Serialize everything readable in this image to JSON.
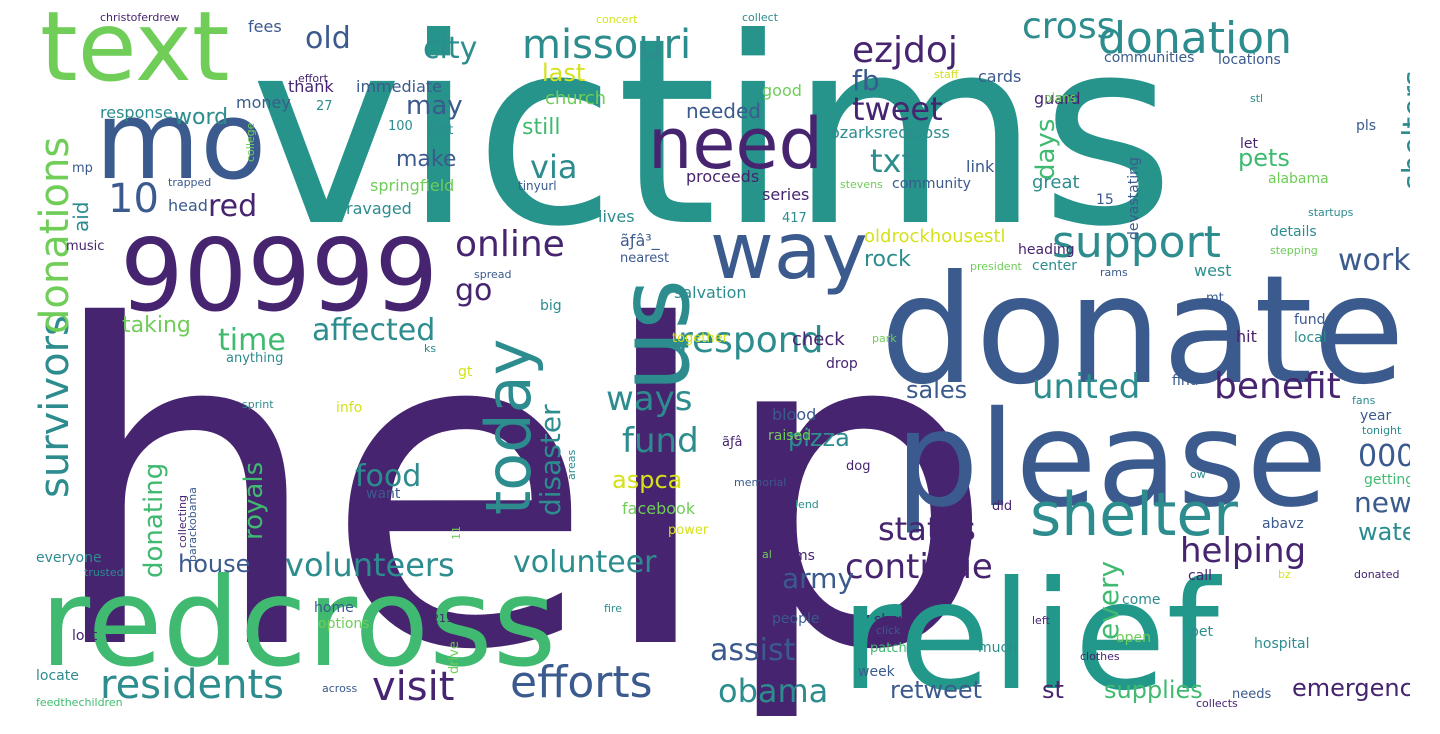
{
  "cloud": {
    "background": "#ffffff",
    "words": [
      {
        "text": "help",
        "color": "#46246f"
      },
      {
        "text": "victims",
        "color": "#26948b"
      },
      {
        "text": "donate",
        "color": "#3b5a8d"
      },
      {
        "text": "please",
        "color": "#3b5a8d"
      },
      {
        "text": "redcross",
        "color": "#3fba70"
      },
      {
        "text": "relief",
        "color": "#22988b"
      },
      {
        "text": "90999",
        "color": "#46246f"
      },
      {
        "text": "mo",
        "color": "#3b5a8d"
      },
      {
        "text": "text",
        "color": "#6fcd58"
      },
      {
        "text": "us",
        "color": "#2c8c8e"
      },
      {
        "text": "way",
        "color": "#3b5a8d"
      },
      {
        "text": "need",
        "color": "#46246f"
      },
      {
        "text": "today",
        "color": "#2c8c8e"
      },
      {
        "text": "shelter",
        "color": "#2c8c8e"
      },
      {
        "text": "donation",
        "color": "#2c8c8e"
      },
      {
        "text": "missouri",
        "color": "#2c8c8e"
      },
      {
        "text": "cross",
        "color": "#2c8c8e"
      },
      {
        "text": "ezjdoj",
        "color": "#46246f"
      },
      {
        "text": "support",
        "color": "#2c8c8e"
      },
      {
        "text": "efforts",
        "color": "#3b5a8d"
      },
      {
        "text": "residents",
        "color": "#2c8c8e"
      },
      {
        "text": "visit",
        "color": "#46246f"
      },
      {
        "text": "obama",
        "color": "#2c8c8e"
      },
      {
        "text": "survivors",
        "color": "#2c8c8e"
      },
      {
        "text": "donations",
        "color": "#6fcd58"
      },
      {
        "text": "online",
        "color": "#46246f"
      },
      {
        "text": "respond",
        "color": "#2c8c8e"
      },
      {
        "text": "benefit",
        "color": "#46246f"
      },
      {
        "text": "united",
        "color": "#2c8c8e"
      },
      {
        "text": "helping",
        "color": "#46246f"
      },
      {
        "text": "continue",
        "color": "#46246f"
      },
      {
        "text": "states",
        "color": "#46246f"
      },
      {
        "text": "volunteers",
        "color": "#2c8c8e"
      },
      {
        "text": "volunteer",
        "color": "#2c8c8e"
      },
      {
        "text": "fund",
        "color": "#2c8c8e"
      },
      {
        "text": "ways",
        "color": "#2c8c8e"
      },
      {
        "text": "affected",
        "color": "#2c8c8e"
      },
      {
        "text": "time",
        "color": "#3fba70"
      },
      {
        "text": "food",
        "color": "#2c8c8e"
      },
      {
        "text": "txt",
        "color": "#2c8c8e"
      },
      {
        "text": "tweet",
        "color": "#46246f"
      },
      {
        "text": "via",
        "color": "#2c8c8e"
      },
      {
        "text": "city",
        "color": "#2c8c8e"
      },
      {
        "text": "old",
        "color": "#3b5a8d"
      },
      {
        "text": "10",
        "color": "#3b5a8d"
      },
      {
        "text": "red",
        "color": "#46246f"
      },
      {
        "text": "fb",
        "color": "#3b5a8d"
      },
      {
        "text": "last",
        "color": "#d5e21a"
      },
      {
        "text": "shelters",
        "color": "#2c8c8e"
      },
      {
        "text": "days",
        "color": "#3fba70"
      },
      {
        "text": "pets",
        "color": "#3fba70"
      },
      {
        "text": "work",
        "color": "#3b5a8d"
      },
      {
        "text": "news",
        "color": "#3b5a8d"
      },
      {
        "text": "000",
        "color": "#3b5a8d"
      },
      {
        "text": "every",
        "color": "#3fba70"
      },
      {
        "text": "water",
        "color": "#2c8c8e"
      },
      {
        "text": "emergency",
        "color": "#46246f"
      },
      {
        "text": "supplies",
        "color": "#3fba70"
      },
      {
        "text": "st",
        "color": "#46246f"
      },
      {
        "text": "retweet",
        "color": "#3b5a8d"
      },
      {
        "text": "army",
        "color": "#3b5a8d"
      },
      {
        "text": "assist",
        "color": "#3b5a8d"
      },
      {
        "text": "disaster",
        "color": "#2c8c8e"
      },
      {
        "text": "aspca",
        "color": "#d5e21a"
      },
      {
        "text": "pizza",
        "color": "#2c8c8e"
      },
      {
        "text": "sales",
        "color": "#3b5a8d"
      },
      {
        "text": "royals",
        "color": "#3fba70"
      },
      {
        "text": "donating",
        "color": "#3fba70"
      },
      {
        "text": "house",
        "color": "#3b5a8d"
      },
      {
        "text": "aid",
        "color": "#2c8c8e"
      },
      {
        "text": "go",
        "color": "#46246f"
      },
      {
        "text": "make",
        "color": "#3b5a8d"
      },
      {
        "text": "may",
        "color": "#3b5a8d"
      },
      {
        "text": "still",
        "color": "#3fba70"
      },
      {
        "text": "needed",
        "color": "#3b5a8d"
      },
      {
        "text": "word",
        "color": "#2c8c8e"
      },
      {
        "text": "taking",
        "color": "#6fcd58"
      },
      {
        "text": "rock",
        "color": "#2c8c8e"
      },
      {
        "text": "oldrockhousestl",
        "color": "#d5e21a"
      },
      {
        "text": "church",
        "color": "#6fcd58"
      },
      {
        "text": "response",
        "color": "#2c8c8e"
      },
      {
        "text": "christoferdrew",
        "color": "#46246f"
      },
      {
        "text": "fees",
        "color": "#3b5a8d"
      },
      {
        "text": "concert",
        "color": "#d5e21a"
      },
      {
        "text": "collect",
        "color": "#2c8c8e"
      },
      {
        "text": "immediate",
        "color": "#3b5a8d"
      },
      {
        "text": "thank",
        "color": "#46246f"
      },
      {
        "text": "money",
        "color": "#3b5a8d"
      },
      {
        "text": "good",
        "color": "#6fcd58"
      },
      {
        "text": "staff",
        "color": "#d5e21a"
      },
      {
        "text": "cards",
        "color": "#3b5a8d"
      },
      {
        "text": "guard",
        "color": "#46246f"
      },
      {
        "text": "communities",
        "color": "#3b5a8d"
      },
      {
        "text": "locations",
        "color": "#3b5a8d"
      },
      {
        "text": "effort",
        "color": "#46246f"
      },
      {
        "text": "27",
        "color": "#2c8c8e"
      },
      {
        "text": "100",
        "color": "#2c8c8e"
      },
      {
        "text": "first",
        "color": "#2c8c8e"
      },
      {
        "text": "college",
        "color": "#6fcd58"
      },
      {
        "text": "mp",
        "color": "#3b5a8d"
      },
      {
        "text": "trapped",
        "color": "#3b5a8d"
      },
      {
        "text": "head",
        "color": "#3b5a8d"
      },
      {
        "text": "springfield",
        "color": "#6fcd58"
      },
      {
        "text": "tinyurl",
        "color": "#3b5a8d"
      },
      {
        "text": "ravaged",
        "color": "#2c8c8e"
      },
      {
        "text": "series",
        "color": "#46246f"
      },
      {
        "text": "proceeds",
        "color": "#46246f"
      },
      {
        "text": "lives",
        "color": "#2c8c8e"
      },
      {
        "text": "417",
        "color": "#2c8c8e"
      },
      {
        "text": "plans",
        "color": "#6fcd58"
      },
      {
        "text": "ozarksredcross",
        "color": "#2c8c8e"
      },
      {
        "text": "link",
        "color": "#3b5a8d"
      },
      {
        "text": "devastating",
        "color": "#3b5a8d"
      },
      {
        "text": "community",
        "color": "#3b5a8d"
      },
      {
        "text": "stevens",
        "color": "#6fcd58"
      },
      {
        "text": "great",
        "color": "#2c8c8e"
      },
      {
        "text": "15",
        "color": "#3b5a8d"
      },
      {
        "text": "let",
        "color": "#46246f"
      },
      {
        "text": "stl",
        "color": "#2c8c8e"
      },
      {
        "text": "pls",
        "color": "#3b5a8d"
      },
      {
        "text": "alabama",
        "color": "#6fcd58"
      },
      {
        "text": "startups",
        "color": "#2c8c8e"
      },
      {
        "text": "details",
        "color": "#2c8c8e"
      },
      {
        "text": "stepping",
        "color": "#6fcd58"
      },
      {
        "text": "heading",
        "color": "#46246f"
      },
      {
        "text": "president",
        "color": "#6fcd58"
      },
      {
        "text": "center",
        "color": "#2c8c8e"
      },
      {
        "text": "rams",
        "color": "#3b5a8d"
      },
      {
        "text": "west",
        "color": "#2c8c8e"
      },
      {
        "text": "ãƒâ³_",
        "color": "#3b5a8d"
      },
      {
        "text": "nearest",
        "color": "#3b5a8d"
      },
      {
        "text": "music",
        "color": "#46246f"
      },
      {
        "text": "spread",
        "color": "#3b5a8d"
      },
      {
        "text": "big",
        "color": "#2c8c8e"
      },
      {
        "text": "salvation",
        "color": "#2c8c8e"
      },
      {
        "text": "anything",
        "color": "#2c8c8e"
      },
      {
        "text": "ks",
        "color": "#2c8c8e"
      },
      {
        "text": "together",
        "color": "#d5e21a"
      },
      {
        "text": "check",
        "color": "#46246f"
      },
      {
        "text": "hit",
        "color": "#46246f"
      },
      {
        "text": "funds",
        "color": "#3b5a8d"
      },
      {
        "text": "local",
        "color": "#2c8c8e"
      },
      {
        "text": "mt",
        "color": "#3b5a8d"
      },
      {
        "text": "park",
        "color": "#6fcd58"
      },
      {
        "text": "gt",
        "color": "#d5e21a"
      },
      {
        "text": "drop",
        "color": "#46246f"
      },
      {
        "text": "find",
        "color": "#3b5a8d"
      },
      {
        "text": "fans",
        "color": "#2c8c8e"
      },
      {
        "text": "sprint",
        "color": "#2c8c8e"
      },
      {
        "text": "info",
        "color": "#d5e21a"
      },
      {
        "text": "blood",
        "color": "#3b5a8d"
      },
      {
        "text": "raised",
        "color": "#6fcd58"
      },
      {
        "text": "year",
        "color": "#3b5a8d"
      },
      {
        "text": "tonight",
        "color": "#2c8c8e"
      },
      {
        "text": "ãƒâ",
        "color": "#46246f"
      },
      {
        "text": "dog",
        "color": "#46246f"
      },
      {
        "text": "memorial",
        "color": "#3b5a8d"
      },
      {
        "text": "want",
        "color": "#3b5a8d"
      },
      {
        "text": "collecting",
        "color": "#46246f"
      },
      {
        "text": "barackobama",
        "color": "#3b5a8d"
      },
      {
        "text": "areas",
        "color": "#2c8c8e"
      },
      {
        "text": "facebook",
        "color": "#6fcd58"
      },
      {
        "text": "lend",
        "color": "#2c8c8e"
      },
      {
        "text": "getting",
        "color": "#3fba70"
      },
      {
        "text": "ow",
        "color": "#2c8c8e"
      },
      {
        "text": "dld",
        "color": "#46246f"
      },
      {
        "text": "11",
        "color": "#6fcd58"
      },
      {
        "text": "power",
        "color": "#d5e21a"
      },
      {
        "text": "abavz",
        "color": "#3b5a8d"
      },
      {
        "text": "everyone",
        "color": "#2c8c8e"
      },
      {
        "text": "trusted",
        "color": "#2c8c8e"
      },
      {
        "text": "items",
        "color": "#46246f"
      },
      {
        "text": "al",
        "color": "#6fcd58"
      },
      {
        "text": "call",
        "color": "#46246f"
      },
      {
        "text": "bz",
        "color": "#d5e21a"
      },
      {
        "text": "donated",
        "color": "#46246f"
      },
      {
        "text": "fire",
        "color": "#2c8c8e"
      },
      {
        "text": "home",
        "color": "#3b5a8d"
      },
      {
        "text": "options",
        "color": "#6fcd58"
      },
      {
        "text": "211",
        "color": "#46246f"
      },
      {
        "text": "drive",
        "color": "#6fcd58"
      },
      {
        "text": "people",
        "color": "#3b5a8d"
      },
      {
        "text": "show",
        "color": "#46246f"
      },
      {
        "text": "click",
        "color": "#3b5a8d"
      },
      {
        "text": "patch",
        "color": "#3fba70"
      },
      {
        "text": "come",
        "color": "#2c8c8e"
      },
      {
        "text": "left",
        "color": "#46246f"
      },
      {
        "text": "open",
        "color": "#6fcd58"
      },
      {
        "text": "pet",
        "color": "#2c8c8e"
      },
      {
        "text": "lost",
        "color": "#46246f"
      },
      {
        "text": "much",
        "color": "#2c8c8e"
      },
      {
        "text": "hospital",
        "color": "#2c8c8e"
      },
      {
        "text": "week",
        "color": "#3b5a8d"
      },
      {
        "text": "clothes",
        "color": "#46246f"
      },
      {
        "text": "locate",
        "color": "#2c8c8e"
      },
      {
        "text": "across",
        "color": "#3b5a8d"
      },
      {
        "text": "needs",
        "color": "#3b5a8d"
      },
      {
        "text": "collects",
        "color": "#46246f"
      },
      {
        "text": "feedthechildren",
        "color": "#3fba70"
      }
    ]
  }
}
